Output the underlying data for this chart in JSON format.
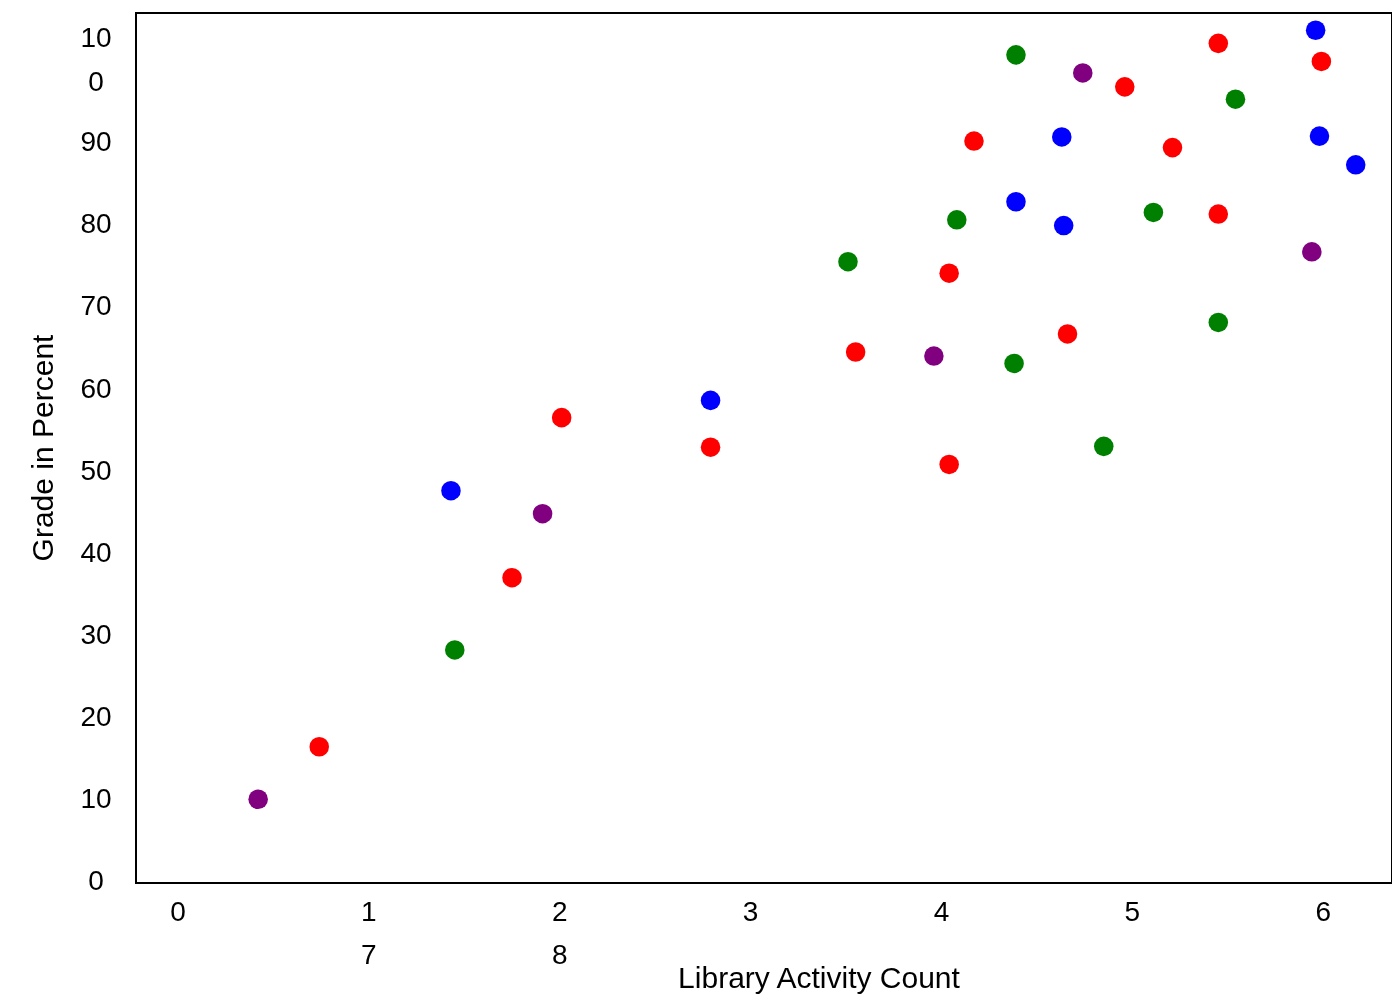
{
  "chart_data": {
    "type": "scatter",
    "xlabel": "Library Activity Count",
    "ylabel": "Grade in Percent",
    "xlim": [
      -0.22,
      6.36
    ],
    "ylim": [
      0,
      106
    ],
    "xticks": [
      0,
      1,
      2,
      3,
      4,
      5,
      6
    ],
    "annotations": [
      "7",
      "8"
    ],
    "yticks": [
      0,
      10,
      20,
      30,
      40,
      50,
      60,
      70,
      80,
      90,
      100
    ],
    "grid": false,
    "marker": "circle",
    "series": [
      {
        "x": [
          0.42,
          0.74,
          1.43,
          1.45,
          1.91,
          1.75,
          2.01,
          2.79,
          2.79,
          3.51,
          3.55,
          3.96,
          4.04,
          4.04,
          4.08,
          4.17,
          4.39,
          4.39,
          4.38,
          4.63,
          4.64,
          4.66,
          4.74,
          4.85,
          4.96,
          5.11,
          5.21,
          5.45,
          5.54,
          5.45,
          5.45,
          5.96,
          5.99,
          5.98,
          6.17,
          5.94
        ],
        "values": [
          10.2,
          16.6,
          47.8,
          28.4,
          45.0,
          37.2,
          56.7,
          58.8,
          53.1,
          75.7,
          64.7,
          64.2,
          51.0,
          74.3,
          80.8,
          90.4,
          100.9,
          83.0,
          63.3,
          90.9,
          80.1,
          66.9,
          98.7,
          53.2,
          97.0,
          81.7,
          89.6,
          102.3,
          95.5,
          81.5,
          68.3,
          103.9,
          100.1,
          91.0,
          87.5,
          76.9
        ],
        "colors": [
          "#800080",
          "#ff0000",
          "#0000ff",
          "#008000",
          "#800080",
          "#ff0000",
          "#ff0000",
          "#0000ff",
          "#ff0000",
          "#008000",
          "#ff0000",
          "#800080",
          "#ff0000",
          "#ff0000",
          "#008000",
          "#ff0000",
          "#008000",
          "#0000ff",
          "#008000",
          "#0000ff",
          "#0000ff",
          "#ff0000",
          "#800080",
          "#008000",
          "#ff0000",
          "#008000",
          "#ff0000",
          "#ff0000",
          "#008000",
          "#ff0000",
          "#008000",
          "#0000ff",
          "#ff0000",
          "#0000ff",
          "#0000ff",
          "#800080"
        ]
      }
    ]
  }
}
